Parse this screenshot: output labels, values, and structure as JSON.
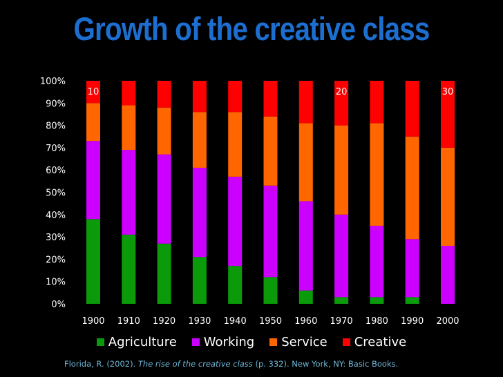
{
  "title": "Growth of the creative class",
  "citation": {
    "prefix": "Florida, R. (2002). ",
    "italic": "The rise of the creative class",
    "suffix": " (p. 332). New York, NY: Basic Books."
  },
  "colors": {
    "Agriculture": "#0a9a0a",
    "Working": "#cc00ff",
    "Service": "#ff6600",
    "Creative": "#ff0000"
  },
  "chart_data": {
    "type": "bar",
    "stacked": true,
    "title": "Growth of the creative class",
    "xlabel": "",
    "ylabel": "",
    "ylim": [
      0,
      100
    ],
    "yticks": [
      "0%",
      "10%",
      "20%",
      "30%",
      "40%",
      "50%",
      "60%",
      "70%",
      "80%",
      "90%",
      "100%"
    ],
    "categories": [
      "1900",
      "1910",
      "1920",
      "1930",
      "1940",
      "1950",
      "1960",
      "1970",
      "1980",
      "1990",
      "2000"
    ],
    "series": [
      {
        "name": "Agriculture",
        "values": [
          38,
          31,
          27,
          21,
          17,
          12,
          6,
          3,
          3,
          3,
          0
        ]
      },
      {
        "name": "Working",
        "values": [
          35,
          38,
          40,
          40,
          40,
          41,
          40,
          37,
          32,
          26,
          26
        ]
      },
      {
        "name": "Service",
        "values": [
          17,
          20,
          21,
          25,
          29,
          31,
          35,
          40,
          46,
          46,
          44
        ]
      },
      {
        "name": "Creative",
        "values": [
          10,
          11,
          12,
          14,
          14,
          16,
          19,
          20,
          19,
          25,
          30
        ]
      }
    ],
    "annotations": [
      {
        "category": "1900",
        "series": "Creative",
        "text": "10"
      },
      {
        "category": "1970",
        "series": "Creative",
        "text": "20"
      },
      {
        "category": "2000",
        "series": "Creative",
        "text": "30"
      }
    ],
    "legend": "bottom",
    "grid": false
  }
}
